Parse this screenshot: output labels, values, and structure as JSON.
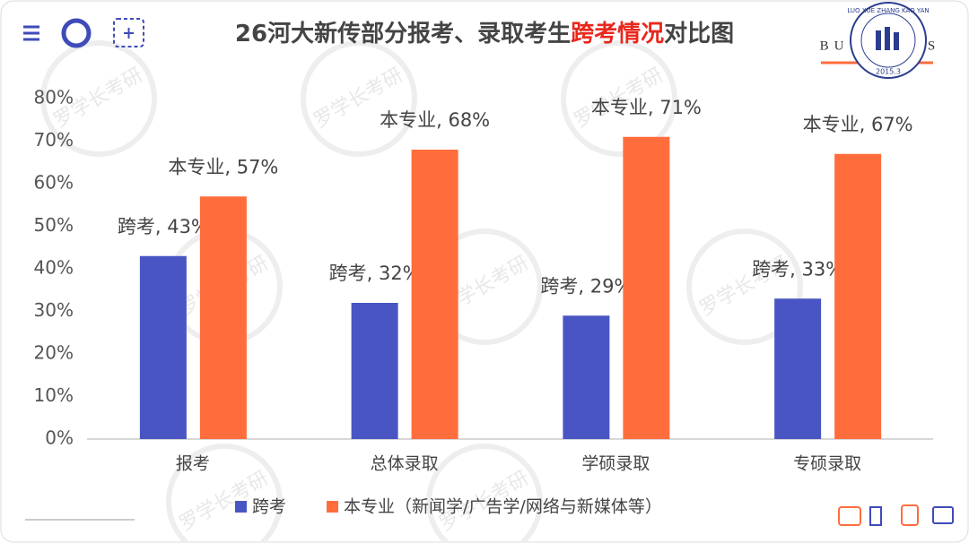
{
  "chart_data": {
    "type": "bar",
    "title": [
      "26河大新传部分报考、录取考生",
      "跨考情况",
      "对比图"
    ],
    "title_highlight_color": "#e8281e",
    "categories": [
      "报考",
      "总体录取",
      "学硕录取",
      "专硕录取"
    ],
    "series": [
      {
        "name": "跨考",
        "color": "#4a55c4",
        "values": [
          43,
          32,
          29,
          33
        ],
        "value_labels": [
          "跨考, 43%",
          "跨考, 32%",
          "跨考, 29%",
          "跨考, 33%"
        ]
      },
      {
        "name": "本专业（新闻学/广告学/网络与新媒体等）",
        "color": "#ff6d3d",
        "values": [
          57,
          68,
          71,
          67
        ],
        "value_labels": [
          "本专业, 57%",
          "本专业, 68%",
          "本专业, 71%",
          "本专业, 67%"
        ]
      }
    ],
    "ylim": [
      0,
      80
    ],
    "yticks": [
      {
        "value": 0,
        "label": "0%"
      },
      {
        "value": 10,
        "label": "10%"
      },
      {
        "value": 20,
        "label": "20%"
      },
      {
        "value": 30,
        "label": "30%"
      },
      {
        "value": 40,
        "label": "40%"
      },
      {
        "value": 50,
        "label": "50%"
      },
      {
        "value": 60,
        "label": "60%"
      },
      {
        "value": 70,
        "label": "70%"
      },
      {
        "value": 80,
        "label": "80%"
      }
    ],
    "grid": false,
    "legend": "bottom"
  },
  "logo": {
    "left": "BU",
    "right": "S",
    "ring": "LUO XUE ZHANG KAO YAN",
    "year": "2015.3"
  },
  "watermark": "罗学长考研"
}
